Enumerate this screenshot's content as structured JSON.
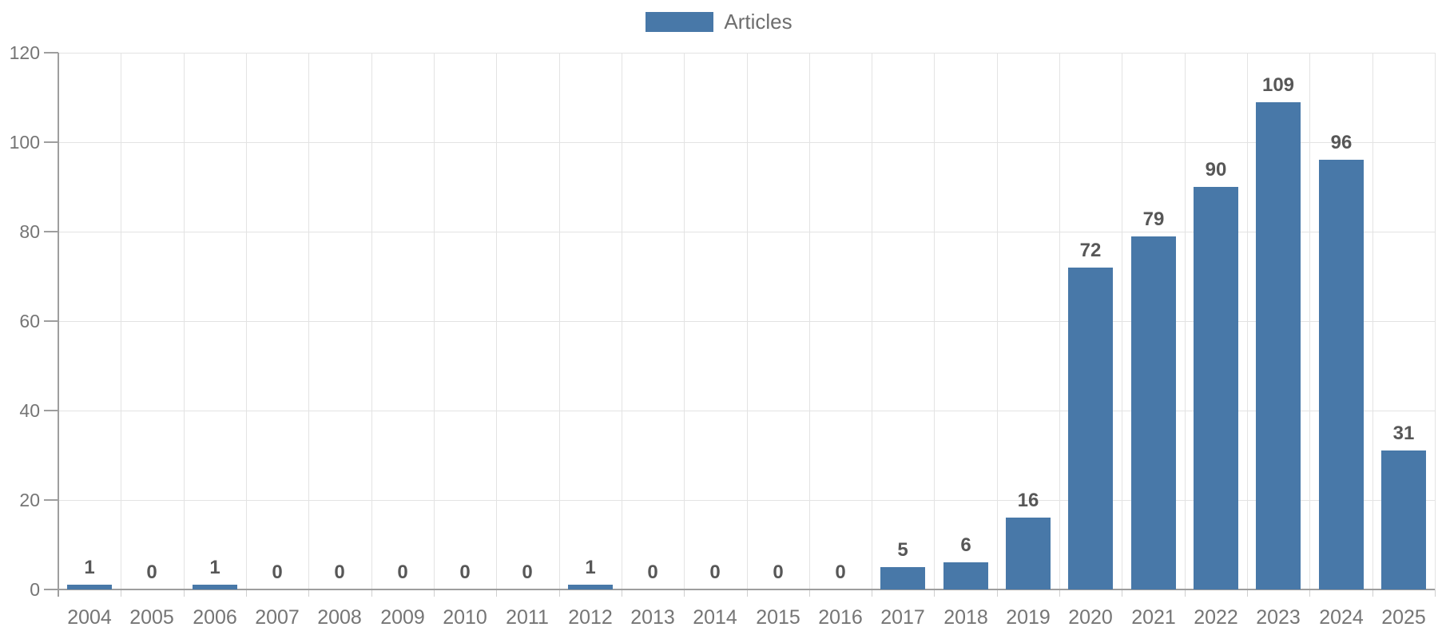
{
  "legend": {
    "label": "Articles"
  },
  "colors": {
    "bar": "#4878a8",
    "grid": "#e3e3e3",
    "axis": "#9e9e9e",
    "minor_tick": "#cfcfcf",
    "axis_label": "#757575",
    "value_label": "#575757",
    "legend_text": "#6e6e6e",
    "background": "#ffffff"
  },
  "chart_data": {
    "type": "bar",
    "title": "",
    "xlabel": "",
    "ylabel": "",
    "categories": [
      "2004",
      "2005",
      "2006",
      "2007",
      "2008",
      "2009",
      "2010",
      "2011",
      "2012",
      "2013",
      "2014",
      "2015",
      "2016",
      "2017",
      "2018",
      "2019",
      "2020",
      "2021",
      "2022",
      "2023",
      "2024",
      "2025"
    ],
    "values": [
      1,
      0,
      1,
      0,
      0,
      0,
      0,
      0,
      1,
      0,
      0,
      0,
      0,
      5,
      6,
      16,
      72,
      79,
      90,
      109,
      96,
      31
    ],
    "series": [
      {
        "name": "Articles",
        "values": [
          1,
          0,
          1,
          0,
          0,
          0,
          0,
          0,
          1,
          0,
          0,
          0,
          0,
          5,
          6,
          16,
          72,
          79,
          90,
          109,
          96,
          31
        ]
      }
    ],
    "ylim": [
      0,
      120
    ],
    "yticks": [
      0,
      20,
      40,
      60,
      80,
      100,
      120
    ],
    "grid": true,
    "value_labels_shown": true,
    "legend_position": "top-center"
  }
}
